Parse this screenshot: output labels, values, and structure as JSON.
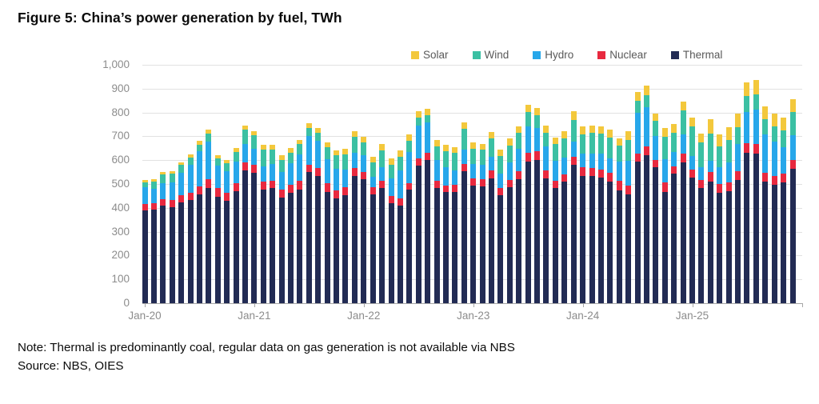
{
  "figure": {
    "title": "Figure 5: China’s power generation by fuel, TWh",
    "note": "Note: Thermal is predominantly coal, regular data on gas generation is not available via NBS",
    "source": "Source: NBS, OIES"
  },
  "chart_data": {
    "type": "bar",
    "stacked": true,
    "title": "Figure 5: China’s power generation by fuel, TWh",
    "unit": "TWh",
    "ylim": [
      0,
      1000
    ],
    "ytick_step": 100,
    "grid": true,
    "legend_position": "top-right",
    "legend_order": [
      "Solar",
      "Wind",
      "Hydro",
      "Nuclear",
      "Thermal"
    ],
    "y_tick_labels": [
      "0",
      "100",
      "200",
      "300",
      "400",
      "500",
      "600",
      "700",
      "800",
      "900",
      "1,000"
    ],
    "x_tick_labels": [
      "Jan-20",
      "Jan-21",
      "Jan-22",
      "Jan-23",
      "Jan-24",
      "Jan-25"
    ],
    "x_tick_indices": [
      0,
      12,
      24,
      36,
      48,
      60
    ],
    "x": [
      "Jan-20",
      "Feb-20",
      "Mar-20",
      "Apr-20",
      "May-20",
      "Jun-20",
      "Jul-20",
      "Aug-20",
      "Sep-20",
      "Oct-20",
      "Nov-20",
      "Dec-20",
      "Jan-21",
      "Feb-21",
      "Mar-21",
      "Apr-21",
      "May-21",
      "Jun-21",
      "Jul-21",
      "Aug-21",
      "Sep-21",
      "Oct-21",
      "Nov-21",
      "Dec-21",
      "Jan-22",
      "Feb-22",
      "Mar-22",
      "Apr-22",
      "May-22",
      "Jun-22",
      "Jul-22",
      "Aug-22",
      "Sep-22",
      "Oct-22",
      "Nov-22",
      "Dec-22",
      "Jan-23",
      "Feb-23",
      "Mar-23",
      "Apr-23",
      "May-23",
      "Jun-23",
      "Jul-23",
      "Aug-23",
      "Sep-23",
      "Oct-23",
      "Nov-23",
      "Dec-23",
      "Jan-24",
      "Feb-24",
      "Mar-24",
      "Apr-24",
      "May-24",
      "Jun-24",
      "Jul-24",
      "Aug-24",
      "Sep-24",
      "Oct-24",
      "Nov-24",
      "Dec-24",
      "Jan-25",
      "Feb-25",
      "Mar-25",
      "Apr-25",
      "May-25",
      "Jun-25",
      "Jul-25",
      "Aug-25",
      "Sep-25",
      "Oct-25",
      "Nov-25",
      "Dec-25"
    ],
    "series": [
      {
        "name": "Thermal",
        "color": "#222b54",
        "values": [
          390,
          392,
          410,
          404,
          424,
          432,
          458,
          484,
          448,
          430,
          470,
          556,
          546,
          478,
          482,
          442,
          462,
          478,
          550,
          532,
          468,
          438,
          452,
          532,
          520,
          455,
          484,
          420,
          408,
          475,
          578,
          600,
          484,
          465,
          468,
          553,
          494,
          489,
          523,
          452,
          486,
          520,
          595,
          602,
          523,
          483,
          510,
          579,
          533,
          534,
          528,
          510,
          474,
          458,
          594,
          620,
          570,
          468,
          544,
          590,
          526,
          482,
          510,
          463,
          471,
          518,
          632,
          628,
          510,
          496,
          507,
          563
        ]
      },
      {
        "name": "Nuclear",
        "color": "#e8293f",
        "values": [
          26,
          27,
          28,
          30,
          30,
          30,
          33,
          35,
          35,
          33,
          33,
          35,
          33,
          32,
          33,
          34,
          34,
          34,
          32,
          34,
          34,
          34,
          34,
          35,
          32,
          30,
          30,
          30,
          30,
          30,
          30,
          32,
          30,
          30,
          28,
          31,
          31,
          30,
          34,
          30,
          30,
          34,
          37,
          34,
          34,
          31,
          31,
          36,
          36,
          34,
          34,
          36,
          38,
          34,
          34,
          37,
          30,
          39,
          31,
          37,
          34,
          36,
          40,
          36,
          37,
          36,
          38,
          39,
          36,
          36,
          38,
          38
        ]
      },
      {
        "name": "Hydro",
        "color": "#27a7ea",
        "values": [
          70,
          62,
          66,
          72,
          93,
          118,
          148,
          160,
          95,
          90,
          90,
          76,
          68,
          64,
          68,
          76,
          90,
          112,
          120,
          114,
          102,
          92,
          76,
          64,
          68,
          45,
          58,
          72,
          118,
          128,
          138,
          125,
          87,
          74,
          60,
          61,
          59,
          62,
          58,
          63,
          74,
          93,
          109,
          98,
          101,
          84,
          69,
          62,
          60,
          60,
          64,
          62,
          82,
          104,
          172,
          166,
          102,
          96,
          60,
          82,
          58,
          54,
          46,
          70,
          83,
          115,
          133,
          144,
          163,
          146,
          110,
          105
        ]
      },
      {
        "name": "Wind",
        "color": "#3bc0a3",
        "values": [
          22,
          30,
          36,
          37,
          32,
          32,
          27,
          34,
          30,
          35,
          43,
          60,
          58,
          70,
          62,
          50,
          45,
          43,
          34,
          34,
          50,
          56,
          63,
          66,
          55,
          60,
          70,
          60,
          58,
          48,
          31,
          30,
          58,
          68,
          74,
          85,
          63,
          62,
          75,
          72,
          72,
          67,
          60,
          56,
          56,
          71,
          82,
          93,
          80,
          86,
          84,
          88,
          68,
          90,
          50,
          49,
          62,
          94,
          79,
          100,
          124,
          102,
          114,
          88,
          93,
          71,
          65,
          64,
          62,
          65,
          70,
          96
        ]
      },
      {
        "name": "Solar",
        "color": "#f3c83c",
        "values": [
          9,
          9,
          12,
          12,
          13,
          13,
          14,
          15,
          12,
          12,
          14,
          18,
          17,
          19,
          20,
          19,
          19,
          19,
          20,
          20,
          21,
          21,
          22,
          23,
          22,
          23,
          27,
          25,
          27,
          27,
          29,
          29,
          27,
          27,
          26,
          28,
          27,
          26,
          28,
          26,
          29,
          27,
          30,
          30,
          30,
          27,
          28,
          35,
          33,
          31,
          32,
          32,
          30,
          34,
          37,
          40,
          33,
          37,
          38,
          38,
          37,
          37,
          62,
          51,
          53,
          54,
          60,
          62,
          56,
          53,
          52,
          54
        ]
      }
    ]
  }
}
